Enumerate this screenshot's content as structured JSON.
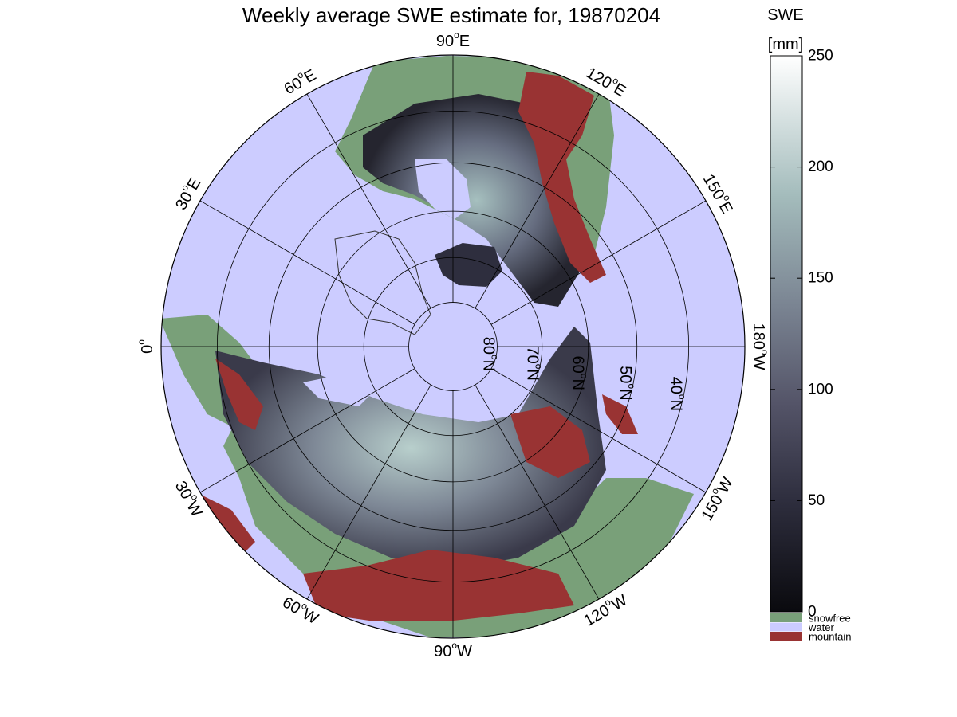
{
  "title": "Weekly average SWE estimate for, 19870204",
  "colorbar": {
    "label_line1": "SWE",
    "label_line2": "[mm]",
    "ticks": [
      "0",
      "50",
      "100",
      "150",
      "200",
      "250"
    ],
    "tick_values": [
      0,
      50,
      100,
      150,
      200,
      250
    ],
    "range": [
      0,
      250
    ],
    "colormap": "bone",
    "categories": [
      {
        "label": "snowfree",
        "color": "#79a079"
      },
      {
        "label": "water",
        "color": "#ccccff"
      },
      {
        "label": "mountain",
        "color": "#993333"
      }
    ]
  },
  "map": {
    "projection": "north polar stereographic",
    "colors": {
      "water": "#ccccff",
      "snowfree": "#79a079",
      "mountain": "#993333",
      "grid": "#000000"
    },
    "meridians": [
      {
        "deg": 0,
        "num": "0",
        "sup": "o",
        "hem": ""
      },
      {
        "deg": 30,
        "num": "30",
        "sup": "o",
        "hem": "W"
      },
      {
        "deg": 60,
        "num": "60",
        "sup": "o",
        "hem": "W"
      },
      {
        "deg": 90,
        "num": "90",
        "sup": "o",
        "hem": "W"
      },
      {
        "deg": 120,
        "num": "120",
        "sup": "o",
        "hem": "W"
      },
      {
        "deg": 150,
        "num": "150",
        "sup": "o",
        "hem": "W"
      },
      {
        "deg": 180,
        "num": "180",
        "sup": "o",
        "hem": "W"
      },
      {
        "deg": 210,
        "num": "150",
        "sup": "o",
        "hem": "E"
      },
      {
        "deg": 240,
        "num": "120",
        "sup": "o",
        "hem": "E"
      },
      {
        "deg": 270,
        "num": "90",
        "sup": "o",
        "hem": "E"
      },
      {
        "deg": 300,
        "num": "60",
        "sup": "o",
        "hem": "E"
      },
      {
        "deg": 330,
        "num": "30",
        "sup": "o",
        "hem": "E"
      }
    ],
    "parallels": [
      {
        "lat": 80,
        "num": "80",
        "sup": "o",
        "hem": "N"
      },
      {
        "lat": 70,
        "num": "70",
        "sup": "o",
        "hem": "N"
      },
      {
        "lat": 60,
        "num": "60",
        "sup": "o",
        "hem": "N"
      },
      {
        "lat": 50,
        "num": "50",
        "sup": "o",
        "hem": "N"
      },
      {
        "lat": 40,
        "num": "40",
        "sup": "o",
        "hem": "N"
      }
    ],
    "outer_latitude": 30
  }
}
